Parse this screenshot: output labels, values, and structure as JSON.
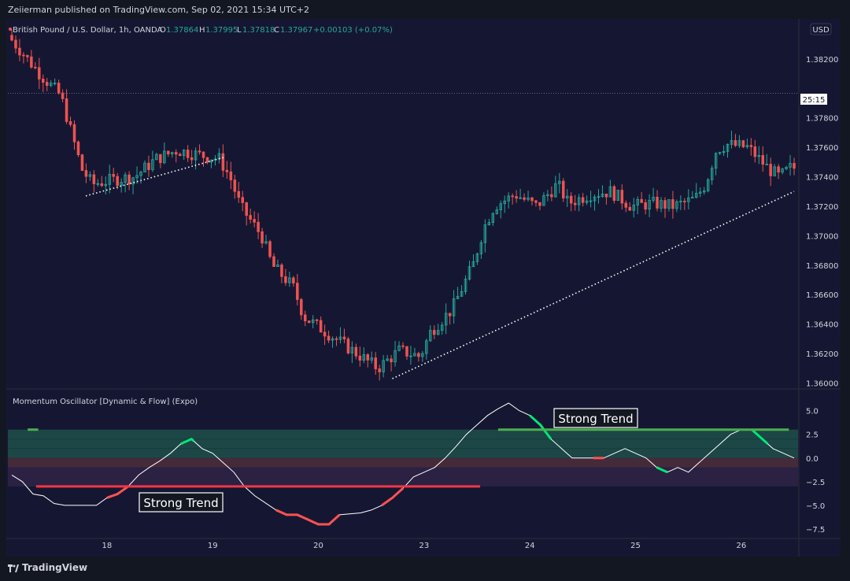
{
  "header": {
    "published_line": "Zeiierman published on TradingView.com, Sep 02, 2021 15:34 UTC+2"
  },
  "legend": {
    "symbol": "British Pound / U.S. Dollar, 1h, OANDA",
    "o_label": "O",
    "o_value": "1.37864",
    "h_label": "H",
    "h_value": "1.37995",
    "l_label": "L",
    "l_value": "1.37818",
    "c_label": "C",
    "c_value": "1.37967",
    "change": "+0.00103 (+0.07%)"
  },
  "price_scale": {
    "currency": "USD",
    "countdown": "25:15",
    "current_price": 1.37967
  },
  "indicator": {
    "title": "Momentum Oscillator [Dynamic & Flow] (Expo)",
    "annotation_lower": "Strong Trend",
    "annotation_upper": "Strong Trend"
  },
  "colors": {
    "background": "#151732",
    "up": "#26a69a",
    "down": "#ef5350",
    "osc_line": "#ffffff",
    "strong_up": "#4caf50",
    "strong_down": "#f23645",
    "flow_up": "#00e676",
    "flow_down": "#ff5252"
  },
  "branding": {
    "name": "TradingView"
  },
  "chart_data": [
    {
      "type": "candlestick",
      "title": "British Pound / U.S. Dollar, 1h, OANDA",
      "ylabel": "USD",
      "ylim": [
        1.3596,
        1.3845
      ],
      "y_ticks": [
        "1.36000",
        "1.36200",
        "1.36400",
        "1.36600",
        "1.36800",
        "1.37000",
        "1.37200",
        "1.37400",
        "1.37600",
        "1.37800",
        "1.38200"
      ],
      "x_ticks": [
        "18",
        "19",
        "20",
        "23",
        "24",
        "25",
        "26"
      ],
      "x_tick_positions": [
        9,
        19,
        29,
        39,
        49,
        59,
        69
      ],
      "x_range": [
        0,
        74
      ],
      "path_points": [
        [
          0,
          1.3836
        ],
        [
          3,
          1.381
        ],
        [
          5,
          1.3795
        ],
        [
          7,
          1.3745
        ],
        [
          8,
          1.3735
        ],
        [
          10,
          1.3738
        ],
        [
          12,
          1.374
        ],
        [
          14,
          1.3752
        ],
        [
          16,
          1.3758
        ],
        [
          18,
          1.3755
        ],
        [
          20,
          1.3752
        ],
        [
          21,
          1.374
        ],
        [
          22,
          1.372
        ],
        [
          24,
          1.37
        ],
        [
          25,
          1.368
        ],
        [
          27,
          1.3665
        ],
        [
          28,
          1.3645
        ],
        [
          30,
          1.3635
        ],
        [
          32,
          1.3625
        ],
        [
          34,
          1.3615
        ],
        [
          35,
          1.361
        ],
        [
          37,
          1.3622
        ],
        [
          39,
          1.3618
        ],
        [
          40,
          1.3635
        ],
        [
          42,
          1.365
        ],
        [
          44,
          1.368
        ],
        [
          45,
          1.3705
        ],
        [
          46,
          1.372
        ],
        [
          48,
          1.3728
        ],
        [
          50,
          1.372
        ],
        [
          52,
          1.3735
        ],
        [
          53,
          1.3722
        ],
        [
          55,
          1.3728
        ],
        [
          57,
          1.373
        ],
        [
          59,
          1.372
        ],
        [
          61,
          1.3722
        ],
        [
          63,
          1.372
        ],
        [
          65,
          1.3725
        ],
        [
          66,
          1.3735
        ],
        [
          67,
          1.3758
        ],
        [
          68,
          1.3762
        ],
        [
          70,
          1.376
        ],
        [
          72,
          1.3745
        ],
        [
          73,
          1.374
        ],
        [
          74,
          1.3746
        ]
      ],
      "trendlines": [
        {
          "from": [
            7,
            1.3727
          ],
          "to": [
            20,
            1.3753
          ]
        },
        {
          "from": [
            36,
            1.3603
          ],
          "to": [
            74,
            1.373
          ]
        }
      ],
      "price_line": 1.37967
    },
    {
      "type": "line",
      "title": "Momentum Oscillator [Dynamic & Flow] (Expo)",
      "ylim": [
        -8.5,
        6.8
      ],
      "y_ticks": [
        5.0,
        2.5,
        0.0,
        -2.5,
        -5.0,
        -7.5
      ],
      "series": [
        {
          "values": [
            [
              0,
              -1.8
            ],
            [
              1,
              -2.5
            ],
            [
              2,
              -3.8
            ],
            [
              3,
              -4.0
            ],
            [
              4,
              -4.8
            ],
            [
              5,
              -5.0
            ],
            [
              7,
              -5.0
            ],
            [
              8,
              -5.0
            ],
            [
              9,
              -4.2
            ],
            [
              10,
              -3.8
            ],
            [
              11,
              -3.0
            ],
            [
              12,
              -1.8
            ],
            [
              13,
              -1.0
            ],
            [
              14,
              -0.3
            ],
            [
              15,
              0.5
            ],
            [
              16,
              1.5
            ],
            [
              17,
              2.0
            ],
            [
              18,
              1.0
            ],
            [
              19,
              0.5
            ],
            [
              20,
              -0.5
            ],
            [
              21,
              -1.5
            ],
            [
              22,
              -3.0
            ],
            [
              23,
              -4.0
            ],
            [
              25,
              -5.5
            ],
            [
              26,
              -6.0
            ],
            [
              27,
              -6.0
            ],
            [
              28,
              -6.5
            ],
            [
              29,
              -7.0
            ],
            [
              30,
              -7.0
            ],
            [
              31,
              -6.0
            ],
            [
              33,
              -5.8
            ],
            [
              34,
              -5.5
            ],
            [
              35,
              -5.0
            ],
            [
              36,
              -4.2
            ],
            [
              37,
              -3.2
            ],
            [
              38,
              -2.0
            ],
            [
              39,
              -1.5
            ],
            [
              40,
              -1.0
            ],
            [
              41,
              0.0
            ],
            [
              42,
              1.2
            ],
            [
              43,
              2.5
            ],
            [
              44,
              3.5
            ],
            [
              45,
              4.5
            ],
            [
              46,
              5.2
            ],
            [
              47,
              5.8
            ],
            [
              48,
              5.0
            ],
            [
              49,
              4.5
            ],
            [
              50,
              3.5
            ],
            [
              51,
              2.0
            ],
            [
              52,
              1.0
            ],
            [
              53,
              0.0
            ],
            [
              54,
              0.0
            ],
            [
              56,
              0.0
            ],
            [
              57,
              0.5
            ],
            [
              58,
              1.0
            ],
            [
              59,
              0.5
            ],
            [
              60,
              0.0
            ],
            [
              61,
              -1.0
            ],
            [
              62,
              -1.5
            ],
            [
              63,
              -1.0
            ],
            [
              64,
              -1.5
            ],
            [
              65,
              -0.5
            ],
            [
              66,
              0.5
            ],
            [
              67,
              1.5
            ],
            [
              68,
              2.5
            ],
            [
              69,
              3.0
            ],
            [
              70,
              3.0
            ],
            [
              71,
              2.0
            ],
            [
              72,
              1.0
            ],
            [
              73,
              0.5
            ],
            [
              74,
              0.0
            ]
          ]
        }
      ],
      "strong_trend_up": {
        "level": 3.0,
        "x_ranges": [
          [
            1.5,
            2.5
          ],
          [
            46,
            73.5
          ]
        ]
      },
      "strong_trend_down": {
        "level": -3.0,
        "x_ranges": [
          [
            2.3,
            44.3
          ]
        ]
      },
      "flow_up_segments": [
        [
          16,
          17.2
        ],
        [
          49,
          51
        ],
        [
          61,
          62
        ],
        [
          70,
          71.5
        ]
      ],
      "flow_down_segments": [
        [
          9,
          11
        ],
        [
          25,
          31
        ],
        [
          35,
          37
        ],
        [
          55,
          56
        ]
      ],
      "zones": [
        {
          "from": 0.0,
          "to": 3.0,
          "color": "#1d4c48"
        },
        {
          "from": -1.0,
          "to": 0.0,
          "color": "#4a2c3b"
        },
        {
          "from": -3.0,
          "to": -1.0,
          "color": "#2e2244"
        }
      ]
    }
  ]
}
